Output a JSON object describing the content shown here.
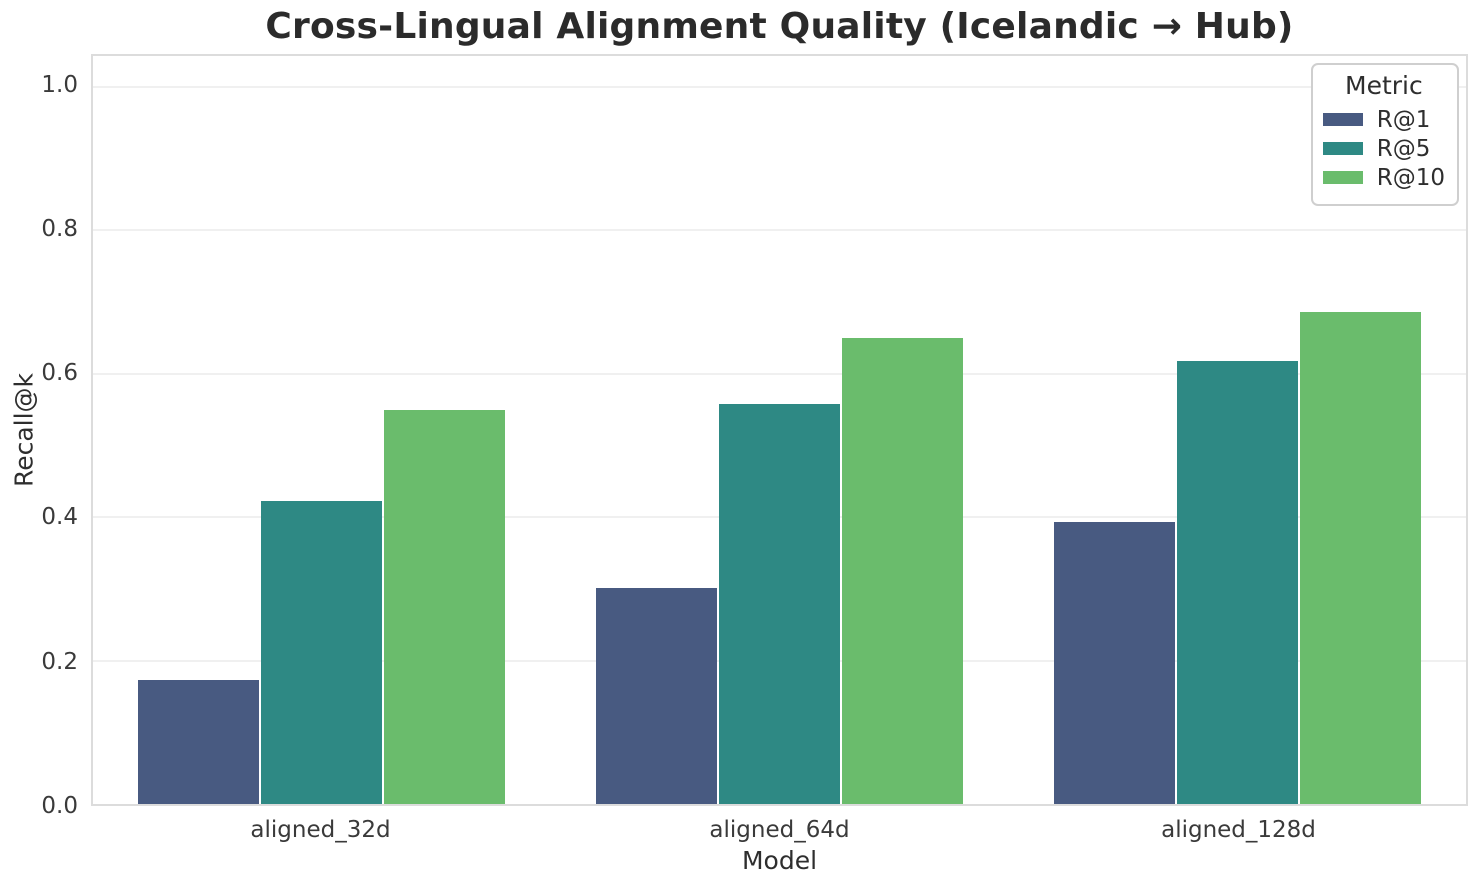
{
  "title": "Cross-Lingual Alignment Quality (Icelandic → Hub)",
  "chart_data": {
    "type": "bar",
    "title": "Cross-Lingual Alignment Quality (Icelandic → Hub)",
    "xlabel": "Model",
    "ylabel": "Recall@k",
    "categories": [
      "aligned_32d",
      "aligned_64d",
      "aligned_128d"
    ],
    "series": [
      {
        "name": "R@1",
        "color": "#485a81",
        "values": [
          0.173,
          0.301,
          0.393
        ]
      },
      {
        "name": "R@5",
        "color": "#2e8984",
        "values": [
          0.422,
          0.557,
          0.617
        ]
      },
      {
        "name": "R@10",
        "color": "#6abc6c",
        "values": [
          0.549,
          0.649,
          0.686
        ]
      }
    ],
    "ylim": [
      0,
      1.0425
    ],
    "yticks": [
      0.0,
      0.2,
      0.4,
      0.6,
      0.8,
      1.0
    ],
    "ytick_labels": [
      "0.0",
      "0.2",
      "0.4",
      "0.6",
      "0.8",
      "1.0"
    ],
    "grid": true,
    "legend_title": "Metric",
    "legend_position": "upper right"
  },
  "colors": {
    "grid": "#f0f0f0",
    "spine": "#dcdcdc",
    "text": "#262626",
    "background": "#ffffff"
  }
}
